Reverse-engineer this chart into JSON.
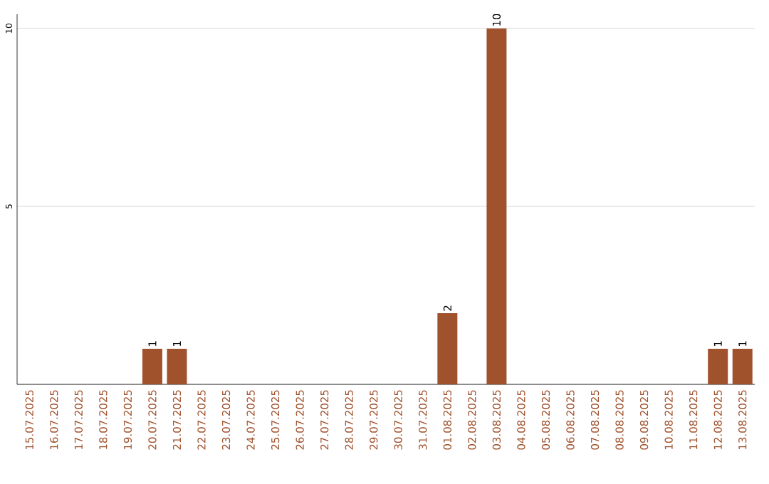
{
  "chart_data": {
    "type": "bar",
    "categories": [
      "15.07.2025",
      "16.07.2025",
      "17.07.2025",
      "18.07.2025",
      "19.07.2025",
      "20.07.2025",
      "21.07.2025",
      "22.07.2025",
      "23.07.2025",
      "24.07.2025",
      "25.07.2025",
      "26.07.2025",
      "27.07.2025",
      "28.07.2025",
      "29.07.2025",
      "30.07.2025",
      "31.07.2025",
      "01.08.2025",
      "02.08.2025",
      "03.08.2025",
      "04.08.2025",
      "05.08.2025",
      "06.08.2025",
      "07.08.2025",
      "08.08.2025",
      "09.08.2025",
      "10.08.2025",
      "11.08.2025",
      "12.08.2025",
      "13.08.2025"
    ],
    "values": [
      0,
      0,
      0,
      0,
      0,
      1,
      1,
      0,
      0,
      0,
      0,
      0,
      0,
      0,
      0,
      0,
      0,
      2,
      0,
      10,
      0,
      0,
      0,
      0,
      0,
      0,
      0,
      0,
      1,
      1
    ],
    "value_labels": [
      null,
      null,
      null,
      null,
      null,
      "1",
      "1",
      null,
      null,
      null,
      null,
      null,
      null,
      null,
      null,
      null,
      null,
      "2",
      null,
      "10",
      null,
      null,
      null,
      null,
      null,
      null,
      null,
      null,
      "1",
      "1"
    ],
    "color": "#a0522d",
    "ylim": [
      0,
      10.4
    ],
    "yticks": [
      {
        "value": 0,
        "label": null
      },
      5,
      10
    ],
    "grid": "y"
  }
}
